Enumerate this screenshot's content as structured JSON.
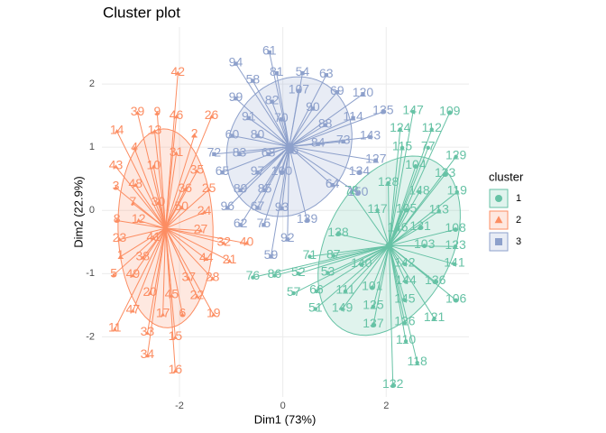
{
  "chart_data": {
    "type": "scatter",
    "title": "Cluster plot",
    "x_label": "Dim1 (73%)",
    "y_label": "Dim2 (22.9%)",
    "legend_title": "cluster",
    "legend_position": "right",
    "grid": true,
    "xlim": [
      -3.5,
      3.6
    ],
    "ylim": [
      -2.95,
      2.9
    ],
    "xticks": [
      -2,
      0,
      2
    ],
    "yticks": [
      -2,
      -1,
      0,
      1,
      2
    ],
    "series": [
      {
        "name": "1",
        "color": "#66C2A5",
        "shape": "circle",
        "labels": [
          "109",
          "147",
          "124",
          "112",
          "115",
          "77",
          "129",
          "104",
          "133",
          "128",
          "148",
          "119",
          "78",
          "117",
          "105",
          "113",
          "146",
          "131",
          "108",
          "138",
          "103",
          "123",
          "141",
          "76",
          "86",
          "71",
          "87",
          "140",
          "142",
          "52",
          "53",
          "144",
          "136",
          "57",
          "66",
          "111",
          "101",
          "106",
          "145",
          "51",
          "149",
          "125",
          "121",
          "137",
          "126",
          "110",
          "118",
          "132"
        ],
        "x": [
          3.23,
          2.52,
          2.27,
          2.88,
          2.31,
          2.81,
          3.35,
          2.57,
          3.14,
          2.04,
          2.64,
          3.37,
          1.33,
          1.83,
          2.39,
          3.02,
          2.22,
          2.66,
          3.34,
          1.07,
          2.74,
          3.34,
          3.32,
          -0.58,
          -0.16,
          0.52,
          0.98,
          1.52,
          2.36,
          0.3,
          0.87,
          2.38,
          2.95,
          0.21,
          0.65,
          1.21,
          1.73,
          3.35,
          2.36,
          0.63,
          1.15,
          1.75,
          2.93,
          1.75,
          2.36,
          2.38,
          2.6,
          2.13
        ],
        "y": [
          1.55,
          1.56,
          1.28,
          1.28,
          0.99,
          0.99,
          0.85,
          0.7,
          0.57,
          0.43,
          0.29,
          0.29,
          0.29,
          0.0,
          0.01,
          -0.01,
          -0.29,
          -0.27,
          -0.3,
          -0.37,
          -0.56,
          -0.57,
          -0.85,
          -1.06,
          -1.03,
          -0.73,
          -0.72,
          -0.86,
          -0.85,
          -1.0,
          -0.99,
          -1.13,
          -1.13,
          -1.31,
          -1.28,
          -1.28,
          -1.22,
          -1.42,
          -1.42,
          -1.56,
          -1.56,
          -1.52,
          -1.71,
          -1.81,
          -1.78,
          -2.07,
          -2.41,
          -2.77
        ]
      },
      {
        "name": "2",
        "color": "#FC8D62",
        "shape": "triangle",
        "labels": [
          "42",
          "39",
          "9",
          "46",
          "26",
          "14",
          "13",
          "2",
          "4",
          "31",
          "43",
          "10",
          "35",
          "3",
          "48",
          "36",
          "25",
          "7",
          "30",
          "50",
          "24",
          "8",
          "12",
          "27",
          "23",
          "41",
          "32",
          "40",
          "1",
          "38",
          "44",
          "21",
          "5",
          "49",
          "37",
          "28",
          "20",
          "45",
          "22",
          "47",
          "17",
          "6",
          "19",
          "11",
          "33",
          "15",
          "34",
          "16"
        ],
        "x": [
          -2.03,
          -2.81,
          -2.43,
          -2.06,
          -1.38,
          -3.21,
          -2.48,
          -1.71,
          -2.87,
          -2.06,
          -3.23,
          -2.5,
          -1.66,
          -3.23,
          -2.85,
          -1.89,
          -1.43,
          -2.9,
          -2.41,
          -1.96,
          -1.52,
          -3.21,
          -2.79,
          -1.59,
          -3.16,
          -2.5,
          -1.14,
          -0.7,
          -3.14,
          -2.71,
          -1.48,
          -1.03,
          -3.27,
          -2.9,
          -1.82,
          -1.36,
          -2.57,
          -2.15,
          -1.66,
          -2.9,
          -2.32,
          -1.94,
          -1.34,
          -3.25,
          -2.62,
          -2.08,
          -2.62,
          -2.08
        ],
        "y": [
          2.17,
          1.54,
          1.54,
          1.48,
          1.48,
          1.25,
          1.25,
          1.19,
          0.98,
          0.9,
          0.69,
          0.69,
          0.62,
          0.36,
          0.4,
          0.33,
          0.33,
          0.11,
          0.11,
          0.04,
          -0.03,
          -0.16,
          -0.16,
          -0.32,
          -0.46,
          -0.44,
          -0.52,
          -0.52,
          -0.73,
          -0.75,
          -0.77,
          -0.8,
          -1.02,
          -1.03,
          -1.08,
          -1.08,
          -1.31,
          -1.35,
          -1.36,
          -1.59,
          -1.65,
          -1.65,
          -1.65,
          -1.88,
          -1.94,
          -2.01,
          -2.3,
          -2.54
        ]
      },
      {
        "name": "3",
        "color": "#8DA0CB",
        "shape": "square",
        "labels": [
          "61",
          "94",
          "81",
          "54",
          "63",
          "58",
          "107",
          "69",
          "120",
          "99",
          "82",
          "90",
          "114",
          "91",
          "70",
          "135",
          "88",
          "60",
          "80",
          "143",
          "73",
          "84",
          "72",
          "83",
          "68",
          "95",
          "134",
          "65",
          "97",
          "100",
          "127",
          "150",
          "89",
          "85",
          "96",
          "67",
          "93",
          "139",
          "62",
          "75",
          "92",
          "59",
          "64"
        ],
        "x": [
          -0.26,
          -0.91,
          -0.12,
          0.38,
          0.84,
          -0.58,
          0.31,
          1.05,
          1.55,
          -0.91,
          -0.21,
          0.58,
          1.36,
          -0.66,
          -0.03,
          1.94,
          0.82,
          -0.98,
          -0.49,
          1.69,
          1.17,
          0.68,
          -1.33,
          -0.84,
          -0.28,
          0.17,
          1.48,
          -1.17,
          -0.49,
          -0.02,
          1.8,
          1.45,
          -0.82,
          -0.35,
          -1.07,
          -0.49,
          -0.02,
          0.47,
          -0.82,
          -0.37,
          0.09,
          -0.23,
          0.96
        ],
        "y": [
          2.5,
          2.32,
          2.17,
          2.17,
          2.14,
          2.05,
          1.89,
          1.87,
          1.84,
          1.77,
          1.72,
          1.61,
          1.46,
          1.46,
          1.44,
          1.56,
          1.35,
          1.18,
          1.18,
          1.16,
          1.09,
          1.05,
          0.89,
          0.89,
          0.89,
          0.93,
          0.6,
          0.6,
          0.6,
          0.6,
          0.79,
          0.27,
          0.32,
          0.32,
          0.04,
          0.04,
          0.03,
          -0.16,
          -0.23,
          -0.23,
          -0.46,
          -0.73,
          0.4
        ]
      }
    ]
  }
}
